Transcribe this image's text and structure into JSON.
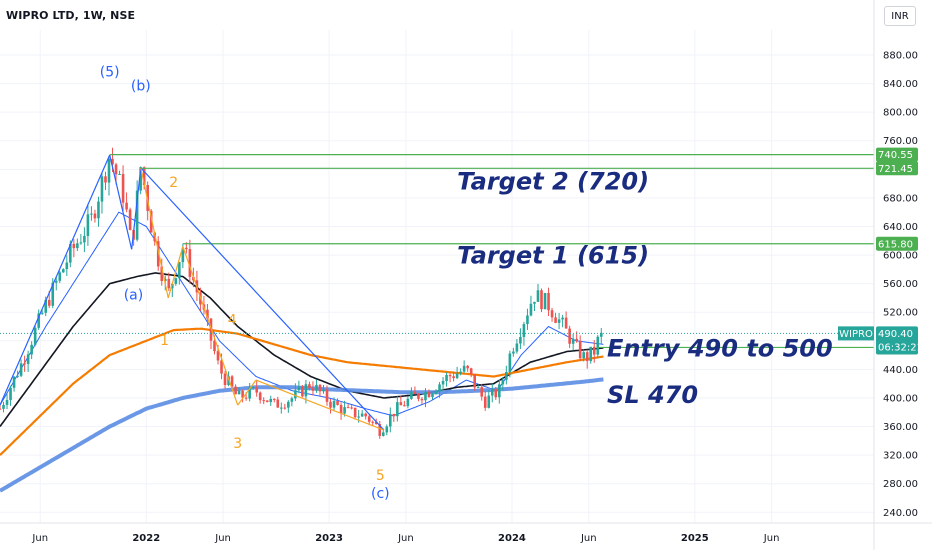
{
  "header": {
    "symbol_title": "WIPRO LTD, 1W, NSE",
    "currency": "INR"
  },
  "colors": {
    "up": "#26a69a",
    "down": "#ef5350",
    "ma_fast": "#2962ff",
    "ma_mid": "#131722",
    "ma_slow": "#f57c00",
    "ma_long": "#5b8de3",
    "level_line": "#4caf50",
    "annotation": "#1a2c80",
    "wave_blue": "#2962ff",
    "wave_orange": "#f5a623"
  },
  "chart_data": {
    "type": "candlestick",
    "timeframe": "1W",
    "ylim": [
      225,
      915
    ],
    "y_ticks": [
      880,
      840,
      800,
      760,
      720,
      680,
      640,
      600,
      560,
      520,
      480,
      440,
      400,
      360,
      320,
      280,
      240
    ],
    "x_ticks": [
      {
        "label": "Jun",
        "t": 2021.42,
        "year": false
      },
      {
        "label": "2022",
        "t": 2022.0,
        "year": true
      },
      {
        "label": "Jun",
        "t": 2022.42,
        "year": false
      },
      {
        "label": "2023",
        "t": 2023.0,
        "year": true
      },
      {
        "label": "Jun",
        "t": 2023.42,
        "year": false
      },
      {
        "label": "2024",
        "t": 2024.0,
        "year": true
      },
      {
        "label": "Jun",
        "t": 2024.42,
        "year": false
      },
      {
        "label": "2025",
        "t": 2025.0,
        "year": true
      },
      {
        "label": "Jun",
        "t": 2025.42,
        "year": false
      }
    ],
    "xlim": [
      2021.2,
      2025.98
    ],
    "price_key_points": [
      [
        2021.2,
        385
      ],
      [
        2021.33,
        455
      ],
      [
        2021.45,
        530
      ],
      [
        2021.58,
        600
      ],
      [
        2021.7,
        650
      ],
      [
        2021.8,
        740
      ],
      [
        2021.88,
        680
      ],
      [
        2021.92,
        610
      ],
      [
        2021.97,
        725
      ],
      [
        2022.05,
        610
      ],
      [
        2022.12,
        545
      ],
      [
        2022.2,
        612
      ],
      [
        2022.3,
        530
      ],
      [
        2022.4,
        440
      ],
      [
        2022.5,
        400
      ],
      [
        2022.6,
        410
      ],
      [
        2022.7,
        390
      ],
      [
        2022.8,
        400
      ],
      [
        2022.9,
        420
      ],
      [
        2023.0,
        395
      ],
      [
        2023.1,
        380
      ],
      [
        2023.2,
        375
      ],
      [
        2023.28,
        355
      ],
      [
        2023.35,
        380
      ],
      [
        2023.45,
        400
      ],
      [
        2023.55,
        410
      ],
      [
        2023.65,
        430
      ],
      [
        2023.75,
        440
      ],
      [
        2023.85,
        395
      ],
      [
        2023.93,
        410
      ],
      [
        2024.0,
        470
      ],
      [
        2024.05,
        500
      ],
      [
        2024.12,
        545
      ],
      [
        2024.2,
        530
      ],
      [
        2024.28,
        500
      ],
      [
        2024.35,
        470
      ],
      [
        2024.4,
        455
      ],
      [
        2024.45,
        465
      ],
      [
        2024.47,
        480
      ],
      [
        2024.5,
        490
      ]
    ],
    "moving_averages": [
      {
        "id": "ma_fast",
        "points": [
          [
            2021.2,
            390
          ],
          [
            2021.45,
            500
          ],
          [
            2021.7,
            600
          ],
          [
            2021.85,
            660
          ],
          [
            2022.0,
            640
          ],
          [
            2022.2,
            560
          ],
          [
            2022.4,
            480
          ],
          [
            2022.6,
            430
          ],
          [
            2022.8,
            410
          ],
          [
            2023.0,
            400
          ],
          [
            2023.2,
            385
          ],
          [
            2023.35,
            375
          ],
          [
            2023.55,
            395
          ],
          [
            2023.75,
            425
          ],
          [
            2023.92,
            410
          ],
          [
            2024.05,
            460
          ],
          [
            2024.2,
            500
          ],
          [
            2024.35,
            480
          ],
          [
            2024.5,
            475
          ]
        ]
      },
      {
        "id": "ma_mid",
        "points": [
          [
            2021.2,
            360
          ],
          [
            2021.4,
            430
          ],
          [
            2021.6,
            500
          ],
          [
            2021.8,
            560
          ],
          [
            2021.95,
            570
          ],
          [
            2022.05,
            575
          ],
          [
            2022.2,
            570
          ],
          [
            2022.35,
            540
          ],
          [
            2022.5,
            500
          ],
          [
            2022.7,
            460
          ],
          [
            2022.9,
            430
          ],
          [
            2023.1,
            410
          ],
          [
            2023.3,
            400
          ],
          [
            2023.5,
            405
          ],
          [
            2023.7,
            415
          ],
          [
            2023.9,
            420
          ],
          [
            2024.1,
            450
          ],
          [
            2024.3,
            465
          ],
          [
            2024.5,
            470
          ]
        ]
      },
      {
        "id": "ma_slow",
        "points": [
          [
            2021.2,
            320
          ],
          [
            2021.4,
            370
          ],
          [
            2021.6,
            420
          ],
          [
            2021.8,
            460
          ],
          [
            2022.0,
            480
          ],
          [
            2022.15,
            495
          ],
          [
            2022.3,
            497
          ],
          [
            2022.5,
            490
          ],
          [
            2022.7,
            475
          ],
          [
            2022.9,
            460
          ],
          [
            2023.1,
            450
          ],
          [
            2023.3,
            445
          ],
          [
            2023.5,
            440
          ],
          [
            2023.7,
            435
          ],
          [
            2023.9,
            430
          ],
          [
            2024.1,
            440
          ],
          [
            2024.3,
            450
          ],
          [
            2024.5,
            458
          ]
        ]
      },
      {
        "id": "ma_long",
        "points": [
          [
            2021.2,
            270
          ],
          [
            2021.4,
            300
          ],
          [
            2021.6,
            330
          ],
          [
            2021.8,
            360
          ],
          [
            2022.0,
            385
          ],
          [
            2022.2,
            400
          ],
          [
            2022.4,
            410
          ],
          [
            2022.6,
            415
          ],
          [
            2022.8,
            415
          ],
          [
            2023.0,
            412
          ],
          [
            2023.2,
            410
          ],
          [
            2023.4,
            408
          ],
          [
            2023.6,
            408
          ],
          [
            2023.8,
            410
          ],
          [
            2024.0,
            413
          ],
          [
            2024.2,
            418
          ],
          [
            2024.4,
            423
          ],
          [
            2024.5,
            426
          ]
        ]
      }
    ],
    "levels": [
      {
        "id": "level-740",
        "price": 740.55,
        "label": "740.55",
        "t_start": 2021.8
      },
      {
        "id": "level-721",
        "price": 721.45,
        "label": "721.45",
        "t_start": 2021.97
      },
      {
        "id": "level-615",
        "price": 615.8,
        "label": "615.80",
        "t_start": 2022.2
      },
      {
        "id": "level-470",
        "price": 470.7,
        "label": "470.70",
        "t_start": 2024.47
      }
    ],
    "last_price": {
      "symbol": "WIPRO",
      "price": 490.4,
      "label": "490.40",
      "countdown": "06:32:21"
    },
    "trendlines": [
      {
        "color": "blue",
        "points": [
          [
            2021.2,
            390
          ],
          [
            2021.8,
            740
          ]
        ]
      },
      {
        "color": "blue",
        "points": [
          [
            2021.8,
            740
          ],
          [
            2021.92,
            608
          ]
        ]
      },
      {
        "color": "blue",
        "points": [
          [
            2021.92,
            608
          ],
          [
            2021.97,
            722
          ]
        ]
      },
      {
        "color": "blue",
        "points": [
          [
            2021.97,
            722
          ],
          [
            2023.3,
            355
          ]
        ]
      },
      {
        "color": "orange",
        "points": [
          [
            2021.97,
            722
          ],
          [
            2022.12,
            540
          ]
        ]
      },
      {
        "color": "orange",
        "points": [
          [
            2022.12,
            540
          ],
          [
            2022.2,
            612
          ]
        ]
      },
      {
        "color": "orange",
        "points": [
          [
            2022.2,
            612
          ],
          [
            2022.5,
            390
          ]
        ]
      },
      {
        "color": "orange",
        "points": [
          [
            2022.5,
            390
          ],
          [
            2022.6,
            425
          ]
        ]
      },
      {
        "color": "orange",
        "points": [
          [
            2022.6,
            425
          ],
          [
            2023.3,
            355
          ]
        ]
      }
    ],
    "wave_labels": [
      {
        "text": "(5)",
        "t": 2021.8,
        "price": 850,
        "color": "blue"
      },
      {
        "text": "(b)",
        "t": 2021.97,
        "price": 830,
        "color": "blue"
      },
      {
        "text": "(a)",
        "t": 2021.93,
        "price": 538,
        "color": "blue"
      },
      {
        "text": "2",
        "t": 2022.15,
        "price": 695,
        "color": "orange"
      },
      {
        "text": "1",
        "t": 2022.1,
        "price": 474,
        "color": "orange"
      },
      {
        "text": "4",
        "t": 2022.47,
        "price": 503,
        "color": "orange"
      },
      {
        "text": "3",
        "t": 2022.5,
        "price": 330,
        "color": "orange"
      },
      {
        "text": "5",
        "t": 2023.28,
        "price": 285,
        "color": "orange"
      },
      {
        "text": "(c)",
        "t": 2023.28,
        "price": 260,
        "color": "blue"
      }
    ],
    "annotations": [
      {
        "text": "Target 2 (720)",
        "t": 2023.7,
        "price": 692
      },
      {
        "text": "Target 1 (615)",
        "t": 2023.7,
        "price": 588
      },
      {
        "text": "Entry 490 to 500",
        "t": 2024.52,
        "price": 458
      },
      {
        "text": "SL 470",
        "t": 2024.52,
        "price": 393
      }
    ]
  }
}
